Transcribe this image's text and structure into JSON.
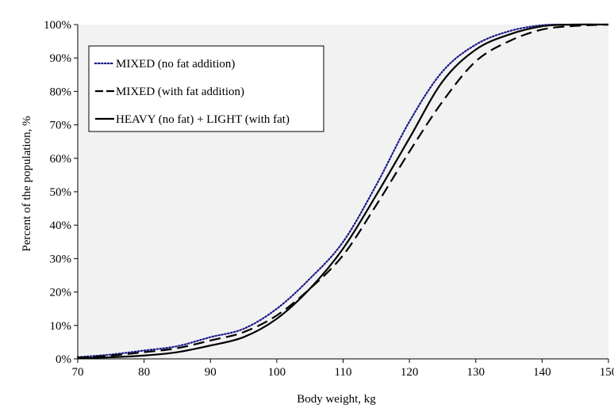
{
  "chart_data": {
    "type": "line",
    "title": "",
    "xlabel": "Body weight, kg",
    "ylabel": "Percent of the population, %",
    "xlim": [
      70,
      150
    ],
    "ylim": [
      0,
      100
    ],
    "x_ticks": [
      70,
      80,
      90,
      100,
      110,
      120,
      130,
      140,
      150
    ],
    "x_tick_labels": [
      "70",
      "80",
      "90",
      "100",
      "110",
      "120",
      "130",
      "140",
      "150"
    ],
    "y_ticks": [
      0,
      10,
      20,
      30,
      40,
      50,
      60,
      70,
      80,
      90,
      100
    ],
    "y_tick_labels": [
      "0%",
      "10%",
      "20%",
      "30%",
      "40%",
      "50%",
      "60%",
      "70%",
      "80%",
      "90%",
      "100%"
    ],
    "grid": false,
    "legend_position": "top-left",
    "plot_background": "#f2f2f2",
    "series": [
      {
        "name": "MIXED (no fat addition)",
        "style": "dotted",
        "color": "#1a1a8c",
        "x": [
          70,
          75,
          80,
          85,
          90,
          95,
          100,
          105,
          110,
          115,
          120,
          125,
          130,
          135,
          140,
          145,
          150
        ],
        "y": [
          0.5,
          1.3,
          2.5,
          3.8,
          6.5,
          9.0,
          15.0,
          24.0,
          35.0,
          52.0,
          71.0,
          86.0,
          94.0,
          98.0,
          99.8,
          100,
          100
        ]
      },
      {
        "name": "MIXED (with fat addition)",
        "style": "dashed",
        "color": "#000000",
        "x": [
          70,
          75,
          80,
          85,
          90,
          95,
          100,
          105,
          110,
          115,
          120,
          125,
          130,
          135,
          140,
          145,
          150
        ],
        "y": [
          0.4,
          1.0,
          2.0,
          3.2,
          5.5,
          8.0,
          13.0,
          21.0,
          31.0,
          46.0,
          62.0,
          77.0,
          89.0,
          95.0,
          98.5,
          99.6,
          100
        ]
      },
      {
        "name": "HEAVY (no fat) + LIGHT (with fat)",
        "style": "solid",
        "color": "#000000",
        "x": [
          70,
          75,
          80,
          85,
          90,
          95,
          100,
          105,
          110,
          115,
          120,
          125,
          130,
          135,
          140,
          145,
          150
        ],
        "y": [
          0.2,
          0.5,
          1.0,
          2.0,
          4.0,
          6.5,
          12.0,
          21.0,
          33.0,
          49.0,
          66.0,
          83.0,
          92.5,
          97.0,
          99.5,
          100,
          100
        ]
      }
    ]
  }
}
